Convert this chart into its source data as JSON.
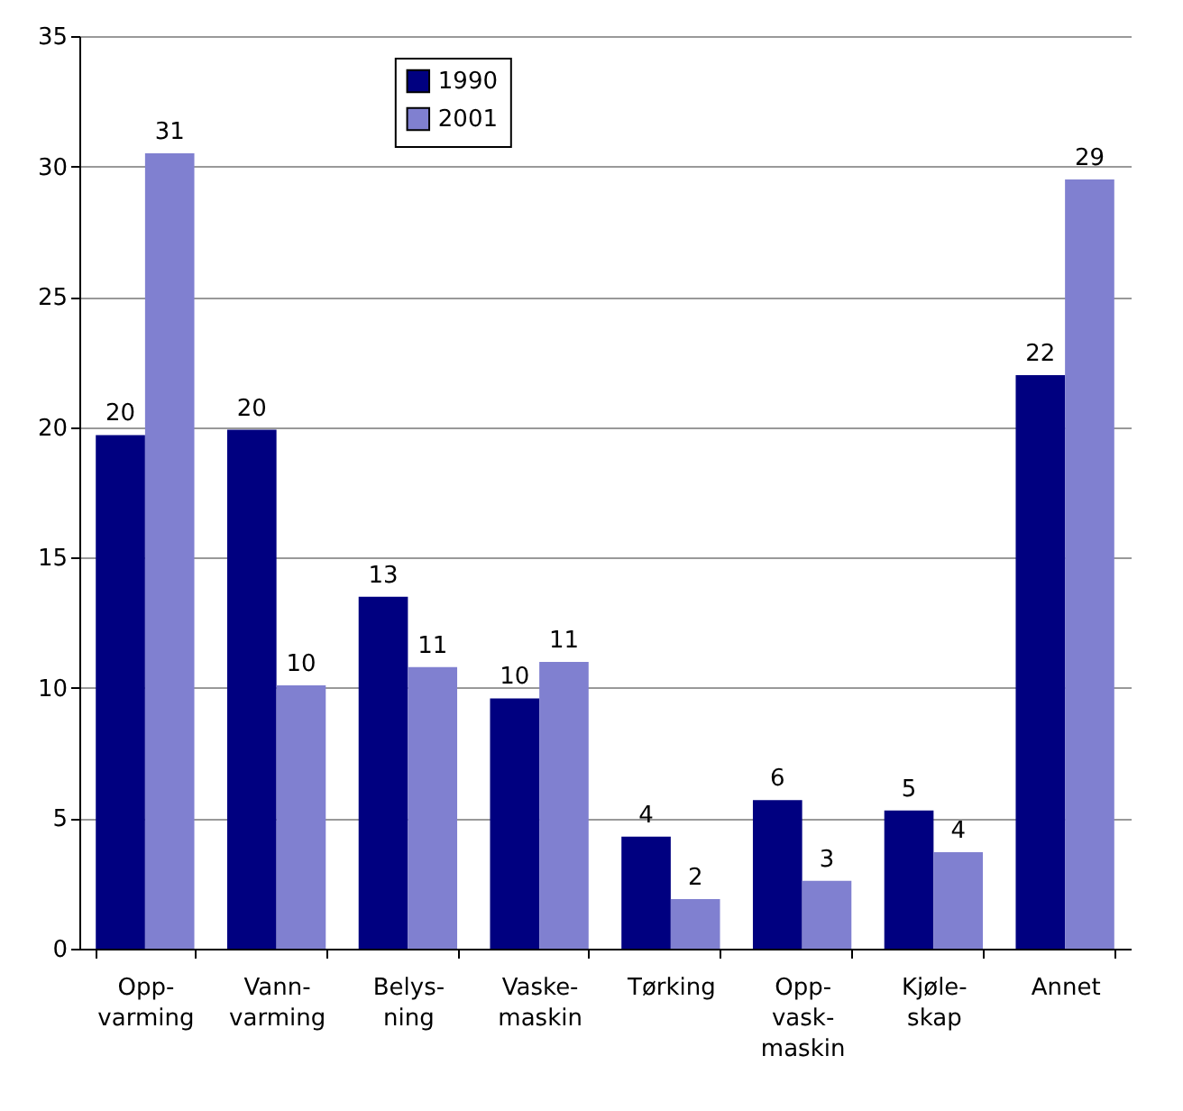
{
  "chart_data": {
    "type": "bar",
    "categories": [
      "Opp-\nvarming",
      "Vann-\nvarming",
      "Belys-\nning",
      "Vaske-\nmaskin",
      "Tørking",
      "Opp-\nvask-\nmaskin",
      "Kjøle-\nskap",
      "Annet"
    ],
    "series": [
      {
        "name": "1990",
        "color": "#000080",
        "values": [
          19.7,
          19.9,
          13.5,
          9.6,
          4.3,
          5.7,
          5.3,
          22.0
        ],
        "value_labels": [
          "20",
          "20",
          "13",
          "10",
          "4",
          "6",
          "5",
          "22"
        ]
      },
      {
        "name": "2001",
        "color": "#8080d0",
        "values": [
          30.5,
          10.1,
          10.8,
          11.0,
          1.9,
          2.6,
          3.7,
          29.5
        ],
        "value_labels": [
          "31",
          "10",
          "11",
          "11",
          "2",
          "3",
          "4",
          "29"
        ]
      }
    ],
    "ylim": [
      0,
      35
    ],
    "yticks": [
      0,
      5,
      10,
      15,
      20,
      25,
      30,
      35
    ],
    "grid": "y",
    "legend": "top"
  }
}
